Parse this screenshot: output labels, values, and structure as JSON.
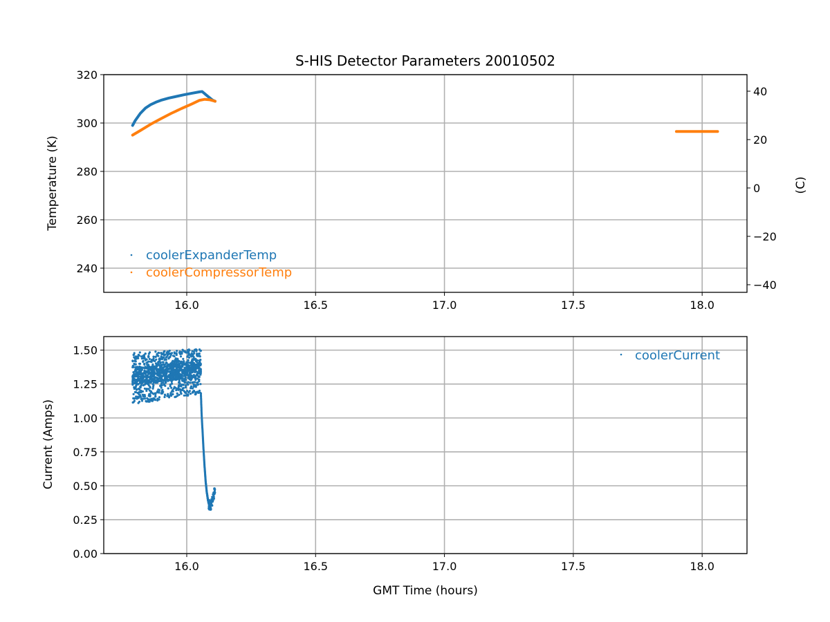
{
  "chart_data": [
    {
      "type": "line",
      "title": "S-HIS Detector Parameters 20010502",
      "xlabel": "",
      "ylabel": "Temperature (K)",
      "ylabel_right": "(C)",
      "xlim": [
        15.678,
        18.174
      ],
      "ylim": [
        230,
        320
      ],
      "ylim_right": [
        -43.15,
        46.85
      ],
      "xticks": [
        "16.0",
        "16.5",
        "17.0",
        "17.5",
        "18.0"
      ],
      "xtick_values": [
        16.0,
        16.5,
        17.0,
        17.5,
        18.0
      ],
      "yticks": [
        "240",
        "260",
        "280",
        "300",
        "320"
      ],
      "ytick_values": [
        240,
        260,
        280,
        300,
        320
      ],
      "yticks_right": [
        "−40",
        "−20",
        "0",
        "20",
        "40"
      ],
      "ytick_right_values": [
        -40,
        -20,
        0,
        20,
        40
      ],
      "grid": true,
      "legend": "lower-left",
      "series": [
        {
          "name": "coolerExpanderTemp",
          "color": "#1f77b4",
          "x": [
            15.79,
            15.8,
            15.82,
            15.84,
            15.86,
            15.88,
            15.9,
            15.93,
            15.96,
            15.99,
            16.02,
            16.05,
            16.06,
            16.08,
            16.1,
            16.11
          ],
          "y": [
            299.0,
            301.0,
            304.0,
            306.2,
            307.6,
            308.6,
            309.4,
            310.3,
            311.0,
            311.7,
            312.3,
            312.9,
            313.0,
            311.2,
            309.5,
            309.0
          ]
        },
        {
          "name": "coolerCompressorTemp",
          "color": "#ff7f0e",
          "x": [
            15.79,
            15.82,
            15.86,
            15.9,
            15.94,
            15.98,
            16.02,
            16.05,
            16.07,
            16.09,
            16.11,
            null,
            17.9,
            18.06
          ],
          "y": [
            295.0,
            296.9,
            299.5,
            301.8,
            304.0,
            306.0,
            307.9,
            309.4,
            309.8,
            309.6,
            309.0,
            null,
            296.5,
            296.5
          ]
        }
      ]
    },
    {
      "type": "scatter",
      "xlabel": "GMT Time (hours)",
      "ylabel": "Current (Amps)",
      "xlim": [
        15.678,
        18.174
      ],
      "ylim": [
        0,
        1.6
      ],
      "xticks": [
        "16.0",
        "16.5",
        "17.0",
        "17.5",
        "18.0"
      ],
      "xtick_values": [
        16.0,
        16.5,
        17.0,
        17.5,
        18.0
      ],
      "yticks": [
        "0.00",
        "0.25",
        "0.50",
        "0.75",
        "1.00",
        "1.25",
        "1.50"
      ],
      "ytick_values": [
        0,
        0.25,
        0.5,
        0.75,
        1.0,
        1.25,
        1.5
      ],
      "grid": true,
      "legend": "upper-right",
      "series": [
        {
          "name": "coolerCurrent",
          "color": "#1f77b4",
          "band": {
            "x": [
              15.79,
              16.055
            ],
            "y_low": [
              1.1,
              1.18
            ],
            "y_high": [
              1.48,
              1.51
            ]
          },
          "x": [
            16.055,
            16.058,
            16.062,
            16.066,
            16.07,
            16.074,
            16.078,
            16.082,
            16.086,
            16.09,
            16.095,
            16.1,
            16.105,
            16.11
          ],
          "y": [
            1.18,
            1.02,
            0.88,
            0.74,
            0.62,
            0.52,
            0.45,
            0.4,
            0.36,
            0.35,
            0.37,
            0.4,
            0.43,
            0.46
          ]
        }
      ]
    }
  ]
}
